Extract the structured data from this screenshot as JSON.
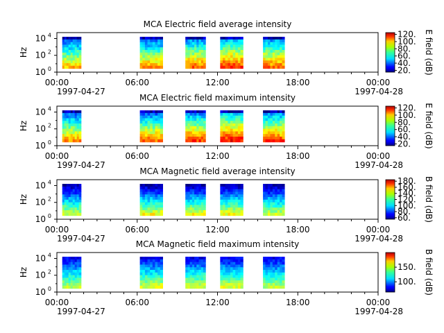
{
  "figure": {
    "title": "MCA spectrogram panels",
    "x_tick_labels": [
      "00:00",
      "06:00",
      "12:00",
      "18:00",
      "00:00"
    ],
    "x_tick_hours": [
      0,
      6,
      12,
      18,
      24
    ],
    "date_start": "1997-04-27",
    "date_end": "1997-04-28",
    "y_axis_label": "Hz",
    "y_tick_labels": [
      {
        "base": "10",
        "exp": "0"
      },
      {
        "base": "10",
        "exp": "2"
      },
      {
        "base": "10",
        "exp": "4"
      }
    ],
    "y_tick_log10": [
      0,
      2,
      4
    ]
  },
  "chart_data": [
    {
      "type": "heatmap",
      "title": "MCA  Electric field average intensity",
      "ylabel": "Hz",
      "yscale": "log",
      "ylim_log10": [
        0,
        4.7
      ],
      "xlim_hours": [
        0,
        24
      ],
      "colorbar": {
        "label": "E field (dB)",
        "range": [
          15,
          125
        ],
        "ticks": [
          20,
          40,
          60,
          80,
          100,
          120
        ],
        "tick_labels": [
          "20.",
          "40.",
          "60.",
          "80.",
          "100.",
          "120."
        ]
      },
      "data_blocks": [
        {
          "start_h": 0.4,
          "end_h": 1.8,
          "low_db": 60,
          "high_db": 90
        },
        {
          "start_h": 6.2,
          "end_h": 7.9,
          "low_db": 60,
          "high_db": 95
        },
        {
          "start_h": 9.6,
          "end_h": 11.1,
          "low_db": 65,
          "high_db": 100
        },
        {
          "start_h": 12.2,
          "end_h": 13.9,
          "low_db": 70,
          "high_db": 105
        },
        {
          "start_h": 15.4,
          "end_h": 17.0,
          "low_db": 65,
          "high_db": 100
        }
      ]
    },
    {
      "type": "heatmap",
      "title": "MCA  Electric field maximum intensity",
      "ylabel": "Hz",
      "yscale": "log",
      "ylim_log10": [
        0,
        4.7
      ],
      "xlim_hours": [
        0,
        24
      ],
      "colorbar": {
        "label": "E field (dB)",
        "range": [
          15,
          125
        ],
        "ticks": [
          20,
          40,
          60,
          80,
          100,
          120
        ],
        "tick_labels": [
          "20.",
          "40.",
          "60.",
          "80.",
          "100.",
          "120."
        ]
      },
      "data_blocks": [
        {
          "start_h": 0.4,
          "end_h": 1.8,
          "low_db": 60,
          "high_db": 95
        },
        {
          "start_h": 6.2,
          "end_h": 7.9,
          "low_db": 60,
          "high_db": 100
        },
        {
          "start_h": 9.6,
          "end_h": 11.1,
          "low_db": 65,
          "high_db": 105
        },
        {
          "start_h": 12.2,
          "end_h": 13.9,
          "low_db": 70,
          "high_db": 110
        },
        {
          "start_h": 15.4,
          "end_h": 17.0,
          "low_db": 65,
          "high_db": 105
        }
      ]
    },
    {
      "type": "heatmap",
      "title": "MCA  Magnetic field average intensity",
      "ylabel": "Hz",
      "yscale": "log",
      "ylim_log10": [
        0,
        4.7
      ],
      "xlim_hours": [
        0,
        24
      ],
      "colorbar": {
        "label": "B field (dB)",
        "range": [
          55,
          185
        ],
        "ticks": [
          60,
          80,
          100,
          120,
          140,
          160,
          180
        ],
        "tick_labels": [
          "60.",
          "80.",
          "100.",
          "120.",
          "140.",
          "160.",
          "180."
        ]
      },
      "data_blocks": [
        {
          "start_h": 0.4,
          "end_h": 1.8,
          "low_db": 130,
          "high_db": 60
        },
        {
          "start_h": 6.2,
          "end_h": 7.9,
          "low_db": 135,
          "high_db": 60
        },
        {
          "start_h": 9.6,
          "end_h": 11.1,
          "low_db": 135,
          "high_db": 60
        },
        {
          "start_h": 12.2,
          "end_h": 13.9,
          "low_db": 135,
          "high_db": 60
        },
        {
          "start_h": 15.4,
          "end_h": 17.0,
          "low_db": 130,
          "high_db": 60
        }
      ]
    },
    {
      "type": "heatmap",
      "title": "MCA  Magnetic field maximum intensity",
      "ylabel": "Hz",
      "yscale": "log",
      "ylim_log10": [
        0,
        4.7
      ],
      "xlim_hours": [
        0,
        24
      ],
      "colorbar": {
        "label": "B field (dB)",
        "range": [
          65,
          200
        ],
        "ticks": [
          100,
          150
        ],
        "tick_labels": [
          "100.",
          "150."
        ]
      },
      "data_blocks": [
        {
          "start_h": 0.4,
          "end_h": 1.8,
          "low_db": 140,
          "high_db": 80
        },
        {
          "start_h": 6.2,
          "end_h": 7.9,
          "low_db": 145,
          "high_db": 80
        },
        {
          "start_h": 9.6,
          "end_h": 11.1,
          "low_db": 145,
          "high_db": 80
        },
        {
          "start_h": 12.2,
          "end_h": 13.9,
          "low_db": 145,
          "high_db": 80
        },
        {
          "start_h": 15.4,
          "end_h": 17.0,
          "low_db": 140,
          "high_db": 80
        }
      ]
    }
  ]
}
